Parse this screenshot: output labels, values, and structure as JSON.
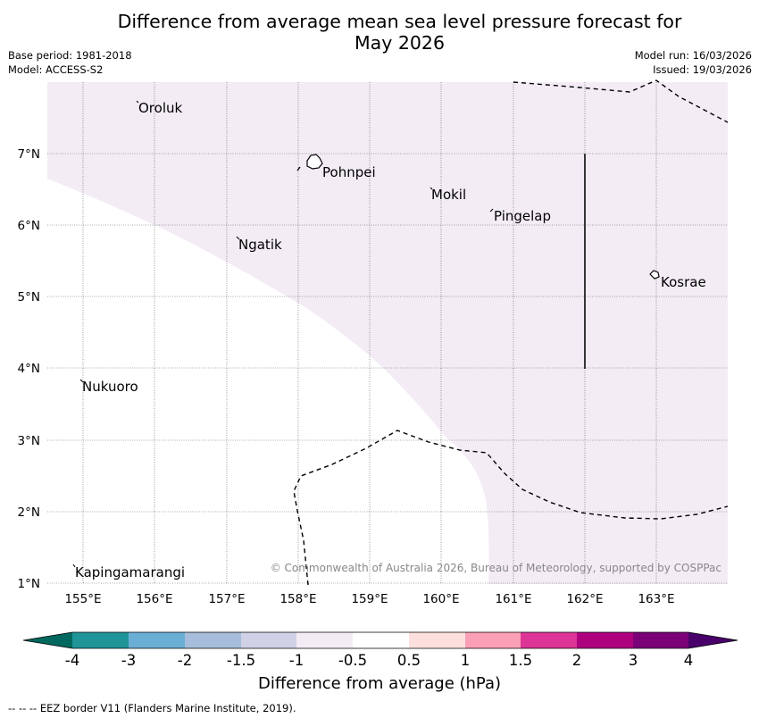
{
  "title": {
    "line1": "Difference from average mean sea level pressure forecast for",
    "line2": "May 2026"
  },
  "meta": {
    "base_period": "Base period: 1981-2018",
    "model": "Model: ACCESS-S2",
    "model_run": "Model run: 16/03/2026",
    "issued": "Issued: 19/03/2026"
  },
  "map": {
    "lon_labels": [
      "155°E",
      "156°E",
      "157°E",
      "158°E",
      "159°E",
      "160°E",
      "161°E",
      "162°E",
      "163°E"
    ],
    "lat_labels": [
      "7°N",
      "6°N",
      "5°N",
      "4°N",
      "3°N",
      "2°N",
      "1°N"
    ],
    "places": [
      "Oroluk",
      "Pohnpei",
      "Mokil",
      "Pingelap",
      "Ngatik",
      "Kosrae",
      "Nukuoro",
      "Kapingamarangi"
    ],
    "copyright": "© Commonwealth of Australia 2026, Bureau of Meteorology, supported by COSPPac",
    "shading_color": "#f3ecf5"
  },
  "colorbar": {
    "ticks": [
      "-4",
      "-3",
      "-2",
      "-1.5",
      "-1",
      "-0.5",
      "0.5",
      "1",
      "1.5",
      "2",
      "3",
      "4"
    ],
    "colors": [
      "#00685e",
      "#1f9499",
      "#6aaed6",
      "#a6bddb",
      "#d0d1e6",
      "#f3ecf5",
      "#ffffff",
      "#fde0dd",
      "#fa9fb5",
      "#dd3497",
      "#ae017e",
      "#7a0177",
      "#49006a"
    ],
    "label": "Difference from average (hPa)"
  },
  "footnote": "-- -- -- EEZ border V11 (Flanders Marine Institute, 2019)."
}
